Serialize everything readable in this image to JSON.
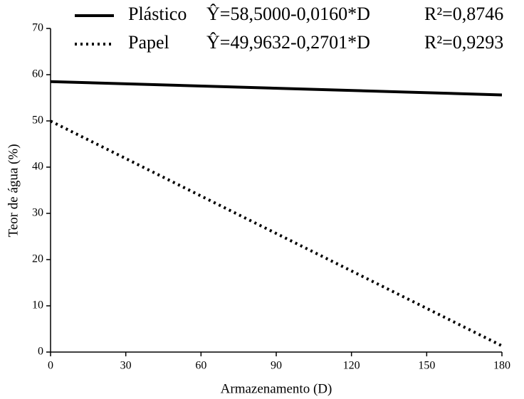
{
  "chart_data": {
    "type": "line",
    "x_label": "Armazenamento (D)",
    "y_label": "Teor de água (%)",
    "x": [
      0,
      180
    ],
    "series": [
      {
        "name": "Plástico",
        "color": "#000000",
        "dash": "solid",
        "equation": "Ŷ=58,5000-0,0160*D",
        "r2": "R²=0,8746",
        "values": [
          58.5,
          55.62
        ]
      },
      {
        "name": "Papel",
        "color": "#000000",
        "dash": "dotted",
        "equation": "Ŷ=49,9632-0,2701*D",
        "r2": "R²=0,9293",
        "values": [
          49.9632,
          1.3452
        ]
      }
    ],
    "xlim": [
      0,
      180
    ],
    "xticks": [
      0,
      30,
      60,
      90,
      120,
      150,
      180
    ],
    "ylim": [
      0,
      70
    ],
    "yticks": [
      0,
      10,
      20,
      30,
      40,
      50,
      60,
      70
    ],
    "grid": false
  }
}
